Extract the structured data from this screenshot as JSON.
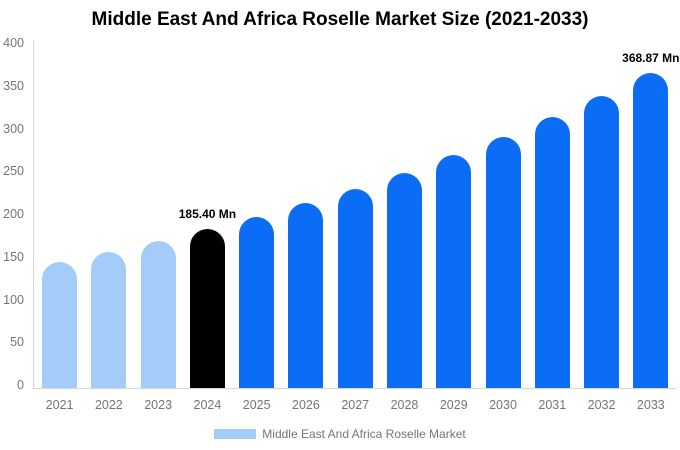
{
  "title": "Middle East And Africa Roselle Market Size (2021-2033)",
  "legend": {
    "label": "Middle East And Africa Roselle Market"
  },
  "colors": {
    "historical": "#a4ccf8",
    "base_year": "#000000",
    "forecast": "#0b6df6",
    "axis_line": "#d6d6d6",
    "label_gray": "#757575",
    "title_text": "#000000",
    "background": "#ffffff"
  },
  "y_axis": {
    "ticks": [
      "400",
      "350",
      "300",
      "250",
      "200",
      "150",
      "100",
      "50",
      "0"
    ]
  },
  "chart_data": {
    "type": "bar",
    "title": "Middle East And Africa Roselle Market Size (2021-2033)",
    "xlabel": "",
    "ylabel": "",
    "unit": "Mn",
    "ylim": [
      0,
      400
    ],
    "grid": false,
    "legend_position": "bottom",
    "legend_entries": [
      "Middle East And Africa Roselle Market"
    ],
    "categories": [
      "2021",
      "2022",
      "2023",
      "2024",
      "2025",
      "2026",
      "2027",
      "2028",
      "2029",
      "2030",
      "2031",
      "2032",
      "2033"
    ],
    "values": [
      147,
      159,
      172,
      185.4,
      200,
      216,
      233,
      252,
      272,
      293,
      317,
      342,
      368.87
    ],
    "series_colors": [
      "historical",
      "historical",
      "historical",
      "base_year",
      "forecast",
      "forecast",
      "forecast",
      "forecast",
      "forecast",
      "forecast",
      "forecast",
      "forecast",
      "forecast"
    ],
    "annotations": [
      {
        "category": "2024",
        "text": "185.40 Mn"
      },
      {
        "category": "2033",
        "text": "368.87 Mn"
      }
    ]
  }
}
